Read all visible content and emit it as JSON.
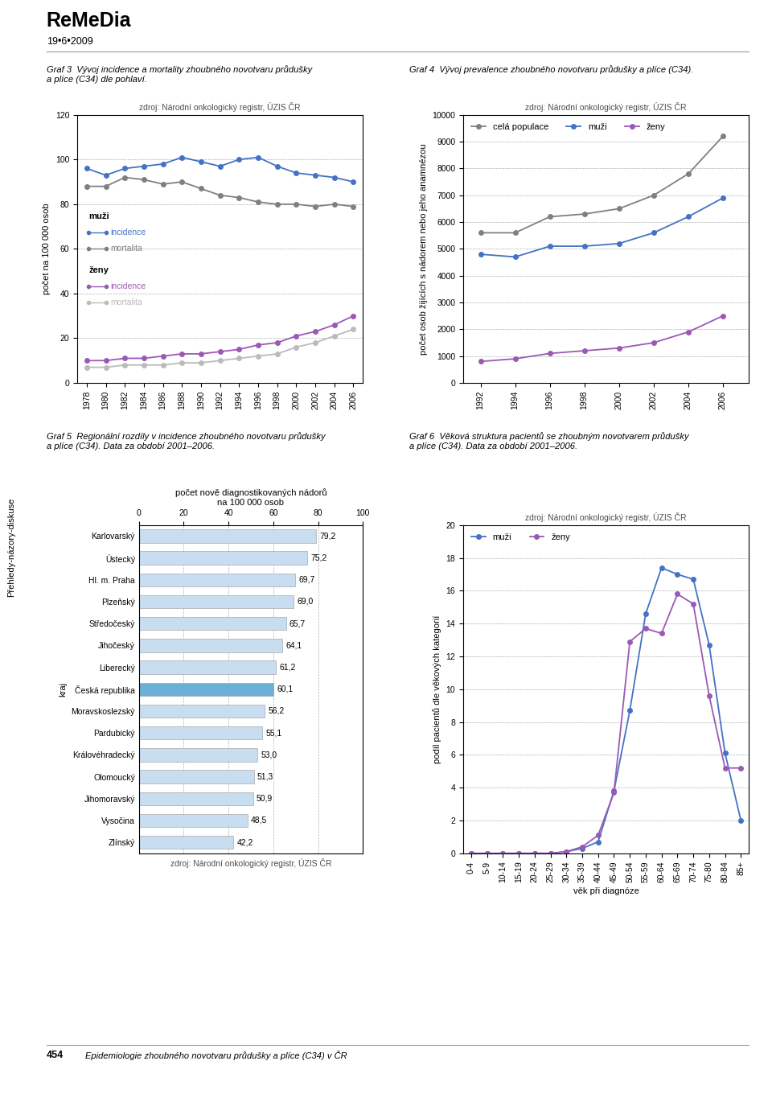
{
  "title": "ReMeDia",
  "subtitle": "19•6•2009",
  "annotations": [
    "Přehledy-názory-diskuse",
    "454",
    "Epidemiologie zhoubného novotvaru průdušky a plíce (C34) v ČR"
  ],
  "chart_data": [
    {
      "type": "line",
      "title": "Graf 3  Vývoj incidence a mortality zhoubného novotvaru průdušky\na plíce (C34) dle pohlaví.",
      "subtitle": "zdroj: Národní onkologický registr, ÚZIS ČR",
      "ylabel": "počet na 100 000 osob",
      "x": [
        1978,
        1980,
        1982,
        1984,
        1986,
        1988,
        1990,
        1992,
        1994,
        1996,
        1998,
        2000,
        2002,
        2004,
        2006
      ],
      "xlim": [
        1977,
        2007
      ],
      "xticks": [
        1978,
        1980,
        1982,
        1984,
        1986,
        1988,
        1990,
        1992,
        1994,
        1996,
        1998,
        2000,
        2002,
        2004,
        2006
      ],
      "ylim": [
        0,
        120
      ],
      "yticks": [
        0,
        20,
        40,
        60,
        80,
        100,
        120
      ],
      "grid": true,
      "marker": "o",
      "series": [
        {
          "color": "#4472c4",
          "values": [
            96,
            93,
            96,
            97,
            98,
            101,
            99,
            97,
            100,
            101,
            97,
            94,
            93,
            92,
            90
          ]
        },
        {
          "color": "#808080",
          "values": [
            88,
            88,
            92,
            91,
            89,
            90,
            87,
            84,
            83,
            81,
            80,
            80,
            79,
            80,
            79
          ]
        },
        {
          "color": "#9b59b6",
          "values": [
            10,
            10,
            11,
            11,
            12,
            13,
            13,
            14,
            15,
            17,
            18,
            21,
            23,
            26,
            30
          ]
        },
        {
          "color": "#bbbbbb",
          "values": [
            7,
            7,
            8,
            8,
            8,
            9,
            9,
            10,
            11,
            12,
            13,
            16,
            18,
            21,
            24
          ]
        }
      ],
      "annotations": [
        "muži",
        "incidence",
        "mortalita",
        "ženy",
        "incidence",
        "mortalita"
      ]
    },
    {
      "type": "line",
      "title": "Graf 4  Vývoj prevalence zhoubného novotvaru průdušky a plíce (C34).",
      "subtitle": "zdroj: Národní onkologický registr, ÚZIS ČR",
      "ylabel": "počet osob žijících s nádorem nebo jeho anamnézou",
      "x": [
        1992,
        1994,
        1996,
        1998,
        2000,
        2002,
        2004,
        2006
      ],
      "xlim": [
        1991,
        2007.5
      ],
      "xticks": [
        1992,
        1994,
        1996,
        1998,
        2000,
        2002,
        2004,
        2006
      ],
      "ylim": [
        0,
        10000
      ],
      "yticks": [
        0,
        1000,
        2000,
        3000,
        4000,
        5000,
        6000,
        7000,
        8000,
        9000,
        10000
      ],
      "grid": true,
      "marker": "o",
      "legend": "upper left",
      "series": [
        {
          "name": "celá populace",
          "color": "#808080",
          "values": [
            5600,
            5600,
            6200,
            6300,
            6500,
            7000,
            7800,
            9200
          ]
        },
        {
          "name": "muži",
          "color": "#4472c4",
          "values": [
            4800,
            4700,
            5100,
            5100,
            5200,
            5600,
            6200,
            6900
          ]
        },
        {
          "name": "ženy",
          "color": "#9b59b6",
          "values": [
            800,
            900,
            1100,
            1200,
            1300,
            1500,
            1900,
            2500
          ]
        }
      ]
    },
    {
      "type": "bar",
      "orientation": "horizontal",
      "title": "Graf 5  Regionální rozdíly v incidence zhoubného novotvaru průdušky\na plíce (C34). Data za období 2001–2006.",
      "subtitle": "zdroj: Národní onkologický registr, ÚZIS ČR",
      "xlabel": "počet nově diagnostikovaných nádorů\nna 100 000 osob",
      "ylabel": "kraj",
      "categories": [
        "Karlovarský",
        "Ústecký",
        "Hl. m. Praha",
        "Plzeňský",
        "Středočeský",
        "Jihočeský",
        "Liberecký",
        "Česká republika",
        "Moravskoslezský",
        "Pardubický",
        "Královéhradecký",
        "Olomoucký",
        "Jihomoravský",
        "Vysočina",
        "Zlínský"
      ],
      "values": [
        79.2,
        75.2,
        69.7,
        69.0,
        65.7,
        64.1,
        61.2,
        60.1,
        56.2,
        55.1,
        53.0,
        51.3,
        50.9,
        48.5,
        42.2
      ],
      "value_labels": [
        "79,2",
        "75,2",
        "69,7",
        "69,0",
        "65,7",
        "64,1",
        "61,2",
        "60,1",
        "56,2",
        "55,1",
        "53,0",
        "51,3",
        "50,9",
        "48,5",
        "42,2"
      ],
      "data_labels": true,
      "colors": [
        "#c8ddf0",
        "#c8ddf0",
        "#c8ddf0",
        "#c8ddf0",
        "#c8ddf0",
        "#c8ddf0",
        "#c8ddf0",
        "#6baed6",
        "#c8ddf0",
        "#c8ddf0",
        "#c8ddf0",
        "#c8ddf0",
        "#c8ddf0",
        "#c8ddf0",
        "#c8ddf0"
      ],
      "xlim": [
        0,
        100
      ],
      "xticks": [
        0,
        20,
        40,
        60,
        80,
        100
      ],
      "grid": true
    },
    {
      "type": "line",
      "title": "Graf 6  Věková struktura pacientů se zhoubným novotvarem průdušky\na plíce (C34). Data za období 2001–2006.",
      "subtitle": "zdroj: Národní onkologický registr, ÚZIS ČR",
      "xlabel": "věk při diagnóze",
      "ylabel": "podíl pacientů dle věkových kategorií",
      "categories": [
        "0-4",
        "5-9",
        "10-14",
        "15-19",
        "20-24",
        "25-29",
        "30-34",
        "35-39",
        "40-44",
        "45-49",
        "50-54",
        "55-59",
        "60-64",
        "65-69",
        "70-74",
        "75-80",
        "80-84",
        "85+"
      ],
      "ylim": [
        0,
        20
      ],
      "yticks": [
        0,
        2,
        4,
        6,
        8,
        10,
        12,
        14,
        16,
        18,
        20
      ],
      "grid": true,
      "marker": "o",
      "legend": "upper left",
      "series": [
        {
          "name": "muži",
          "color": "#4472c4",
          "values": [
            0.0,
            0.0,
            0.0,
            0.0,
            0.0,
            0.0,
            0.1,
            0.3,
            0.7,
            3.8,
            8.7,
            14.6,
            17.4,
            17.0,
            16.7,
            12.7,
            6.1,
            2.0
          ]
        },
        {
          "name": "ženy",
          "color": "#9b59b6",
          "values": [
            0.0,
            0.0,
            0.0,
            0.0,
            0.0,
            0.0,
            0.1,
            0.4,
            1.1,
            3.7,
            12.9,
            13.7,
            13.4,
            15.8,
            15.2,
            9.6,
            5.2,
            5.2
          ]
        }
      ]
    }
  ]
}
